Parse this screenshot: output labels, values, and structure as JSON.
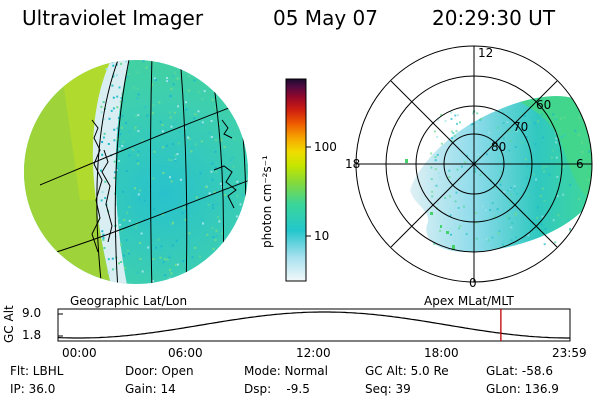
{
  "header": {
    "title": "Ultraviolet Imager",
    "date": "05 May 07",
    "time": "20:29:30 UT"
  },
  "colorbar": {
    "unit_label": "photon cm⁻²s⁻¹",
    "ticks": [
      "100",
      "10"
    ],
    "colors": [
      "#1a0a2e",
      "#3b0a3b",
      "#6a0036",
      "#9e0c22",
      "#d21d10",
      "#f06a00",
      "#f7a800",
      "#e8df00",
      "#b9e800",
      "#7ad94a",
      "#38d6a2",
      "#20c8d0",
      "#9ee0f0",
      "#e8f4f8"
    ]
  },
  "left_panel": {
    "caption": "Geographic Lat/Lon"
  },
  "right_panel": {
    "caption": "Apex MLat/MLT",
    "mlt_labels": {
      "top": "12",
      "left": "18",
      "right": "6",
      "bottom": "0"
    },
    "lat_labels": [
      "60",
      "70",
      "80"
    ]
  },
  "orbit": {
    "axis_label": "GC Alt",
    "y_ticks": [
      "9.0",
      "1.8"
    ],
    "x_ticks": [
      "00:00",
      "06:00",
      "12:00",
      "18:00",
      "23:59"
    ],
    "current_fraction": 0.865,
    "marker_color": "#c00000"
  },
  "info": {
    "flt": "Flt: LBHL",
    "ip": "IP: 36.0",
    "door": "Door: Open",
    "gain": "Gain: 14",
    "mode": "Mode: Normal",
    "dsp": "Dsp:    -9.5",
    "gcalt": "GC Alt: 5.0 Re",
    "seq": "Seq: 39",
    "glat": "GLat: -58.6",
    "glon": "GLon: 136.9"
  }
}
